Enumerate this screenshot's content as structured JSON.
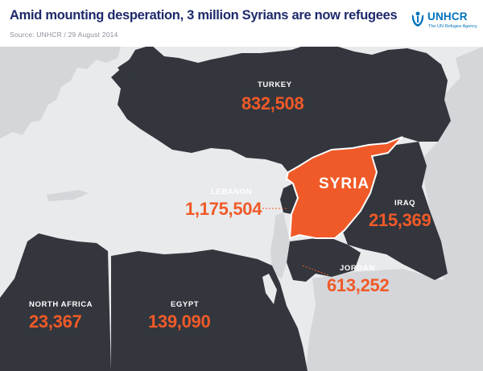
{
  "header": {
    "title": "Amid mounting desperation, 3 million Syrians are now refugees",
    "source": "Source: UNHCR / 29 August 2014"
  },
  "logo": {
    "name": "UNHCR",
    "tagline": "The UN Refugee Agency",
    "color": "#0072bc"
  },
  "colors": {
    "sea": "#e9eaec",
    "host_country": "#33363d",
    "other_land": "#d4d6da",
    "syria": "#f05a28",
    "figure": "#f05a28",
    "title": "#1e2a6b"
  },
  "map": {
    "highlight": "SYRIA",
    "countries": [
      {
        "id": "turkey",
        "name": "TURKEY",
        "refugees": "832,508"
      },
      {
        "id": "lebanon",
        "name": "LEBANON",
        "refugees": "1,175,504"
      },
      {
        "id": "iraq",
        "name": "IRAQ",
        "refugees": "215,369"
      },
      {
        "id": "jordan",
        "name": "JORDAN",
        "refugees": "613,252"
      },
      {
        "id": "egypt",
        "name": "EGYPT",
        "refugees": "139,090"
      },
      {
        "id": "north_africa",
        "name": "NORTH AFRICA",
        "refugees": "23,367"
      }
    ]
  }
}
